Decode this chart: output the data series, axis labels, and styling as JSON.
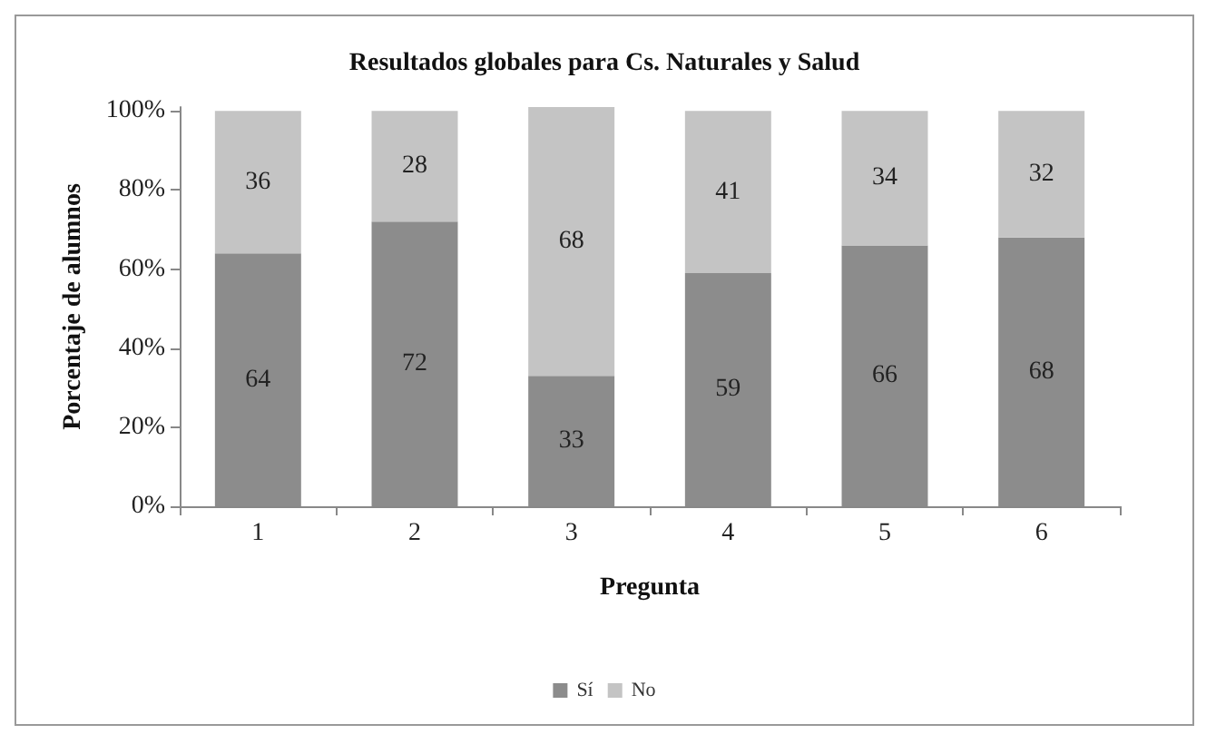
{
  "chart_data": {
    "type": "bar",
    "title": "Resultados globales para Cs. Naturales y Salud",
    "xlabel": "Pregunta",
    "ylabel": "Porcentaje de alumnos",
    "categories": [
      "1",
      "2",
      "3",
      "4",
      "5",
      "6"
    ],
    "series": [
      {
        "name": "Sí",
        "color": "#8c8c8c",
        "values": [
          64,
          72,
          33,
          59,
          66,
          68
        ]
      },
      {
        "name": "No",
        "color": "#c4c4c4",
        "values": [
          36,
          28,
          68,
          41,
          34,
          32
        ]
      }
    ],
    "stacked": true,
    "data_labels": true,
    "grid": false,
    "legend": "bottom",
    "ylim": [
      0,
      101
    ],
    "yticks": [
      {
        "value": 0,
        "label": "0%"
      },
      {
        "value": 20,
        "label": "20%"
      },
      {
        "value": 40,
        "label": "40%"
      },
      {
        "value": 60,
        "label": "60%"
      },
      {
        "value": 80,
        "label": "80%"
      },
      {
        "value": 100,
        "label": "100%"
      }
    ]
  }
}
